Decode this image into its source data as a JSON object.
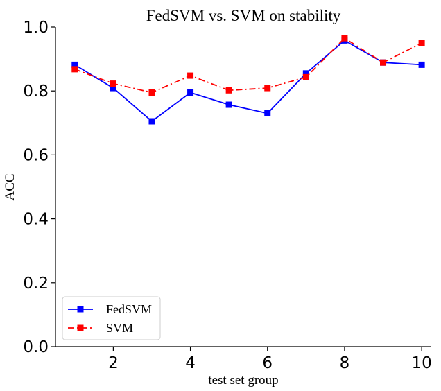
{
  "chart_data": {
    "type": "line",
    "title": "FedSVM vs. SVM on stability",
    "xlabel": "test set group",
    "ylabel": "ACC",
    "xlim": [
      0.5,
      10.25
    ],
    "ylim": [
      0.0,
      1.0
    ],
    "xticks": [
      "2",
      "4",
      "6",
      "8",
      "10"
    ],
    "xtick_values": [
      2,
      4,
      6,
      8,
      10
    ],
    "yticks": [
      "0.0",
      "0.2",
      "0.4",
      "0.6",
      "0.8",
      "1.0"
    ],
    "ytick_values": [
      0.0,
      0.2,
      0.4,
      0.6,
      0.8,
      1.0
    ],
    "grid": false,
    "legend_position": "lower-left",
    "x": [
      1,
      2,
      3,
      4,
      5,
      6,
      7,
      8,
      9,
      10
    ],
    "series": [
      {
        "name": "FedSVM",
        "color": "#0000ff",
        "line_style": "solid",
        "marker": "square",
        "values": [
          0.882,
          0.809,
          0.705,
          0.795,
          0.757,
          0.73,
          0.855,
          0.958,
          0.889,
          0.882
        ]
      },
      {
        "name": "SVM",
        "color": "#ff0000",
        "line_style": "dash-dot",
        "marker": "square",
        "values": [
          0.868,
          0.823,
          0.795,
          0.848,
          0.802,
          0.809,
          0.843,
          0.965,
          0.889,
          0.95
        ]
      }
    ]
  }
}
